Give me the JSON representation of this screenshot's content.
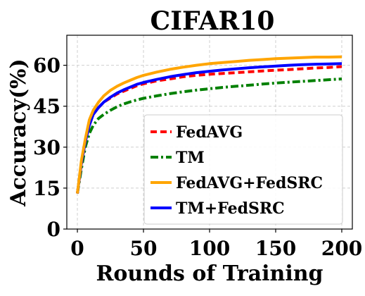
{
  "chart_data": {
    "type": "line",
    "title": "CIFAR10",
    "xlabel": "Rounds of Training",
    "ylabel": "Accuracy(%)",
    "xlim": [
      -8,
      208
    ],
    "ylim": [
      0,
      71
    ],
    "xticks": [
      0,
      50,
      100,
      150,
      200
    ],
    "yticks": [
      0,
      15,
      30,
      45,
      60
    ],
    "grid": true,
    "legend_position": "lower-right",
    "x": [
      0,
      3,
      6,
      9,
      12,
      16,
      20,
      25,
      30,
      35,
      40,
      45,
      50,
      60,
      70,
      80,
      90,
      100,
      110,
      120,
      130,
      140,
      150,
      160,
      170,
      180,
      190,
      200
    ],
    "series": [
      {
        "name": "FedAVG",
        "color": "#ff0000",
        "dash": "dashed",
        "values": [
          13,
          24,
          32,
          38,
          42,
          44.5,
          46.5,
          48,
          49.5,
          50.5,
          51.5,
          52.5,
          53.2,
          54.3,
          55,
          55.8,
          56.3,
          56.7,
          57,
          57.3,
          57.6,
          57.9,
          58.2,
          58.4,
          58.7,
          59,
          59.2,
          59.5
        ]
      },
      {
        "name": "TM",
        "color": "#008000",
        "dash": "dashdot",
        "values": [
          13,
          22,
          30,
          35,
          38,
          40.5,
          42,
          43.5,
          44.8,
          45.8,
          46.6,
          47.3,
          47.9,
          48.8,
          49.6,
          50.3,
          50.9,
          51.4,
          51.9,
          52.3,
          52.7,
          53.1,
          53.5,
          53.8,
          54.1,
          54.4,
          54.7,
          55
        ]
      },
      {
        "name": "FedAVG+FedSRC",
        "color": "#ffa500",
        "dash": "solid",
        "values": [
          13,
          25,
          33,
          40,
          43.5,
          46.5,
          48.8,
          50.8,
          52.3,
          53.5,
          54.5,
          55.5,
          56.3,
          57.5,
          58.5,
          59.3,
          60,
          60.6,
          61,
          61.4,
          61.8,
          62.1,
          62.4,
          62.6,
          62.8,
          63,
          63,
          63.1
        ]
      },
      {
        "name": "TM+FedSRC",
        "color": "#0000ff",
        "dash": "solid",
        "values": [
          13,
          24,
          32,
          38,
          42,
          44.5,
          46.5,
          48.3,
          49.8,
          51,
          52,
          53,
          53.7,
          54.8,
          55.8,
          56.6,
          57.3,
          57.8,
          58.3,
          58.7,
          59.1,
          59.4,
          59.7,
          60,
          60.2,
          60.4,
          60.5,
          60.6
        ]
      }
    ]
  }
}
